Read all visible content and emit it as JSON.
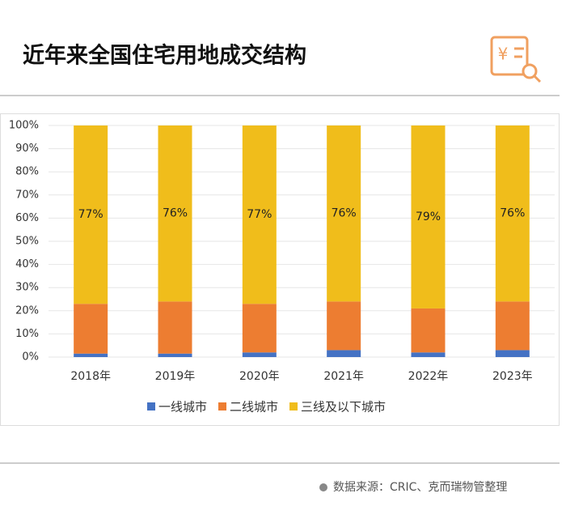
{
  "chart_data": {
    "type": "stacked_bar",
    "title": "近年来全国住宅用地成交结构",
    "source": "数据来源：CRIC、克而瑞物管整理",
    "categories": [
      "2018年",
      "2019年",
      "2020年",
      "2021年",
      "2022年",
      "2023年"
    ],
    "series": [
      {
        "name": "一线城市",
        "color": "#4472c4",
        "values": [
          1.5,
          1.5,
          2,
          3,
          2,
          3
        ]
      },
      {
        "name": "二线城市",
        "color": "#ed7d31",
        "values": [
          21.5,
          22.5,
          21,
          21,
          19,
          21
        ]
      },
      {
        "name": "三线及以下城市",
        "color": "#f0bd1b",
        "values": [
          77,
          76,
          77,
          76,
          79,
          76
        ],
        "value_labels": [
          "77%",
          "76%",
          "77%",
          "76%",
          "79%",
          "76%"
        ]
      }
    ],
    "ylim": [
      0,
      100
    ],
    "yticks": [
      {
        "value": 0,
        "label": "0%"
      },
      {
        "value": 10,
        "label": "10%"
      },
      {
        "value": 20,
        "label": "20%"
      },
      {
        "value": 30,
        "label": "30%"
      },
      {
        "value": 40,
        "label": "40%"
      },
      {
        "value": 50,
        "label": "50%"
      },
      {
        "value": 60,
        "label": "60%"
      },
      {
        "value": 70,
        "label": "70%"
      },
      {
        "value": 80,
        "label": "80%"
      },
      {
        "value": 90,
        "label": "90%"
      },
      {
        "value": 100,
        "label": "100%"
      }
    ],
    "grid": true,
    "legend": "bottom"
  }
}
